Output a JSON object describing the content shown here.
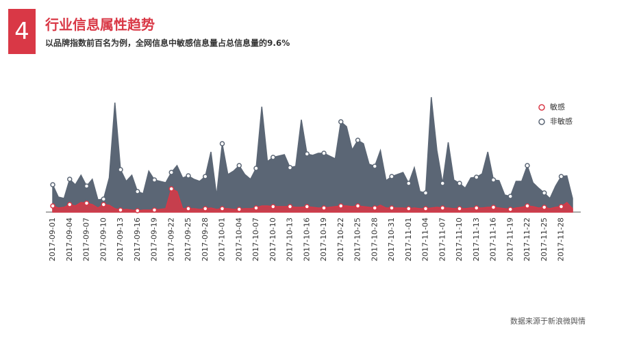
{
  "header": {
    "number": "4",
    "title": "行业信息属性趋势",
    "subtitle": "以品牌指数前百名为例，全网信息中敏感信息量占总信息量的9.6%"
  },
  "chart_data": {
    "type": "area",
    "categories": [
      "2017-09-01",
      null,
      null,
      "2017-09-04",
      null,
      null,
      "2017-09-07",
      null,
      null,
      "2017-09-10",
      null,
      null,
      "2017-09-13",
      null,
      null,
      "2017-09-16",
      null,
      null,
      "2017-09-19",
      null,
      null,
      "2017-09-22",
      null,
      null,
      "2017-09-25",
      null,
      null,
      "2017-09-28",
      null,
      null,
      "2017-10-01",
      null,
      null,
      "2017-10-04",
      null,
      null,
      "2017-10-07",
      null,
      null,
      "2017-10-10",
      null,
      null,
      "2017-10-13",
      null,
      null,
      "2017-10-16",
      null,
      null,
      "2017-10-19",
      null,
      null,
      "2017-10-22",
      null,
      null,
      "2017-10-25",
      null,
      null,
      "2017-10-28",
      null,
      null,
      "2017-10-31",
      null,
      null,
      "2017-11-01",
      null,
      null,
      "2017-11-04",
      null,
      null,
      "2017-11-07",
      null,
      null,
      "2017-11-10",
      null,
      null,
      "2017-11-13",
      null,
      null,
      "2017-11-16",
      null,
      null,
      "2017-11-19",
      null,
      null,
      "2017-11-22",
      null,
      null,
      "2017-11-25",
      null,
      null,
      "2017-11-28",
      null,
      null
    ],
    "series": [
      {
        "name": "非敏感",
        "color": "#5b6675",
        "values": [
          40,
          22,
          20,
          48,
          40,
          54,
          38,
          48,
          18,
          19,
          50,
          160,
          62,
          45,
          54,
          30,
          27,
          60,
          47,
          45,
          43,
          58,
          68,
          50,
          53,
          48,
          45,
          52,
          88,
          24,
          100,
          55,
          60,
          68,
          55,
          48,
          64,
          154,
          74,
          80,
          82,
          84,
          65,
          67,
          135,
          85,
          83,
          86,
          86,
          82,
          78,
          132,
          125,
          91,
          105,
          100,
          70,
          67,
          90,
          46,
          52,
          55,
          58,
          42,
          65,
          30,
          28,
          168,
          90,
          42,
          102,
          47,
          42,
          35,
          50,
          51,
          56,
          88,
          47,
          46,
          25,
          23,
          45,
          45,
          68,
          43,
          35,
          28,
          20,
          38,
          52,
          53,
          20
        ]
      },
      {
        "name": "敏感",
        "color": "#d93846",
        "values": [
          9,
          6,
          7,
          11,
          9,
          14,
          13,
          11,
          6,
          11,
          10,
          5,
          3,
          4,
          3,
          2,
          3,
          3,
          3,
          4,
          5,
          34,
          30,
          5,
          5,
          5,
          4,
          5,
          6,
          4,
          5,
          5,
          4,
          4,
          5,
          5,
          6,
          9,
          9,
          8,
          8,
          8,
          8,
          7,
          7,
          8,
          7,
          6,
          6,
          7,
          8,
          9,
          9,
          8,
          9,
          8,
          7,
          6,
          10,
          6,
          6,
          6,
          6,
          5,
          6,
          5,
          5,
          6,
          7,
          6,
          6,
          5,
          5,
          5,
          6,
          6,
          6,
          7,
          7,
          6,
          5,
          4,
          6,
          7,
          9,
          8,
          6,
          7,
          5,
          7,
          8,
          14,
          5
        ]
      }
    ],
    "ylim": [
      0,
      170
    ],
    "legend": "top-right"
  },
  "footer": {
    "source": "数据来源于新浪微舆情"
  }
}
